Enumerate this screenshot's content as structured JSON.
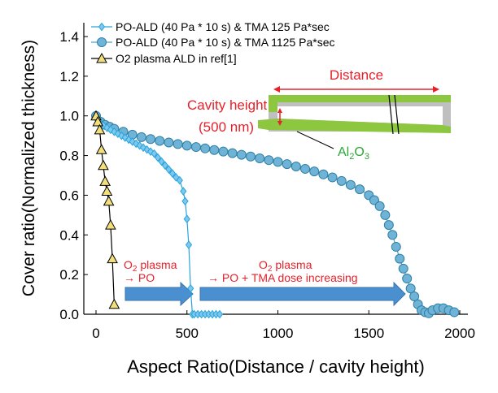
{
  "chart_data": {
    "type": "scatter",
    "xlabel": "Aspect Ratio(Distance / cavity height)",
    "ylabel": "Cover ratio(Normalized thickness)",
    "xlim": [
      -50,
      2000
    ],
    "ylim": [
      0,
      1.5
    ],
    "xticks": [
      "0",
      "500",
      "1000",
      "1500",
      "2000"
    ],
    "yticks": [
      "0.0",
      "0.2",
      "0.4",
      "0.6",
      "0.8",
      "1.0",
      "1.2",
      "1.4"
    ],
    "legend": {
      "placement": "top-left"
    },
    "series": [
      {
        "name": "PO-ALD (40 Pa * 10 s) & TMA 125 Pa*sec",
        "marker": "diamond",
        "color": "#29a3dc",
        "x": [
          0,
          20,
          40,
          60,
          80,
          100,
          120,
          140,
          160,
          180,
          200,
          220,
          240,
          260,
          280,
          300,
          320,
          340,
          360,
          380,
          400,
          420,
          440,
          460,
          480,
          490,
          500,
          510,
          520,
          530,
          540,
          560,
          580,
          600,
          620,
          640,
          660,
          680
        ],
        "y": [
          1.0,
          0.965,
          0.952,
          0.94,
          0.93,
          0.92,
          0.91,
          0.9,
          0.89,
          0.88,
          0.87,
          0.86,
          0.85,
          0.84,
          0.83,
          0.82,
          0.81,
          0.79,
          0.77,
          0.75,
          0.73,
          0.71,
          0.69,
          0.675,
          0.62,
          0.57,
          0.48,
          0.35,
          0.13,
          0.0,
          0.0,
          0.0,
          0.0,
          0.0,
          0.0,
          0.0,
          0.0,
          0.0
        ]
      },
      {
        "name": "PO-ALD (40 Pa * 10  s) & TMA 1125 Pa*sec",
        "marker": "circle",
        "color": "#4aa3c8",
        "x": [
          0,
          25,
          50,
          75,
          100,
          150,
          200,
          250,
          300,
          350,
          400,
          450,
          500,
          550,
          600,
          650,
          700,
          750,
          800,
          850,
          900,
          950,
          1000,
          1050,
          1100,
          1150,
          1200,
          1250,
          1300,
          1350,
          1400,
          1450,
          1500,
          1530,
          1560,
          1590,
          1610,
          1630,
          1650,
          1670,
          1690,
          1710,
          1730,
          1750,
          1770,
          1790,
          1810,
          1830,
          1850,
          1880,
          1910,
          1940,
          1970
        ],
        "y": [
          1.0,
          0.97,
          0.955,
          0.945,
          0.935,
          0.92,
          0.905,
          0.893,
          0.883,
          0.874,
          0.866,
          0.858,
          0.85,
          0.843,
          0.836,
          0.828,
          0.82,
          0.812,
          0.804,
          0.795,
          0.786,
          0.777,
          0.768,
          0.757,
          0.745,
          0.733,
          0.72,
          0.705,
          0.69,
          0.672,
          0.652,
          0.63,
          0.6,
          0.575,
          0.545,
          0.5,
          0.45,
          0.4,
          0.34,
          0.28,
          0.23,
          0.18,
          0.13,
          0.09,
          0.05,
          0.02,
          0.01,
          0.005,
          0.02,
          0.03,
          0.03,
          0.02,
          0.01
        ]
      },
      {
        "name": "O2 plasma ALD in ref[1]",
        "marker": "triangle",
        "color": "#000000",
        "fill": "#f2de7a",
        "x": [
          0,
          10,
          20,
          30,
          40,
          50,
          60,
          70,
          80,
          90,
          100
        ],
        "y": [
          1.0,
          0.97,
          0.93,
          0.83,
          0.75,
          0.67,
          0.62,
          0.57,
          0.45,
          0.28,
          0.05
        ]
      }
    ],
    "annotations": {
      "distance": "Distance",
      "cavity_height": "Cavity height",
      "cavity_height_value": "(500 nm)",
      "material": "Al",
      "material_sub": "2",
      "material_tail": "O",
      "material_sub2": "3",
      "arrow1_line1_pre": "O",
      "arrow1_line1_sub": "2",
      "arrow1_line1_post": " plasma",
      "arrow1_line2": "→  PO",
      "arrow2_line1_pre": "O",
      "arrow2_line1_sub": "2",
      "arrow2_line1_post": " plasma",
      "arrow2_line2": "→ PO + TMA dose increasing"
    },
    "colors": {
      "annotation_red": "#e8202a",
      "annotation_green": "#2ca836",
      "arrow_blue": "#4a8fcf",
      "diagram_green": "#8dc63f",
      "diagram_gray": "#bfbfbf"
    }
  }
}
